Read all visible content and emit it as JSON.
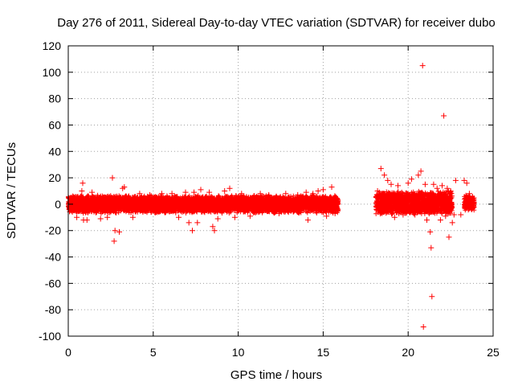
{
  "chart_data": {
    "type": "scatter",
    "title": "Day 276 of 2011, Sidereal Day-to-day VTEC variation (SDTVAR) for receiver dubo",
    "xlabel": "GPS time / hours",
    "ylabel": "SDTVAR / TECUs",
    "xlim": [
      0,
      25
    ],
    "ylim": [
      -100,
      120
    ],
    "xticks": [
      0,
      5,
      10,
      15,
      20,
      25
    ],
    "yticks": [
      -100,
      -80,
      -60,
      -40,
      -20,
      0,
      20,
      40,
      60,
      80,
      100,
      120
    ],
    "grid": true,
    "marker": "+",
    "color": "#ff0000",
    "segments": [
      {
        "x_start": 0.0,
        "x_end": 15.9,
        "y_min": -5,
        "y_max": 5
      },
      {
        "x_start": 18.1,
        "x_end": 22.6,
        "y_min": -6,
        "y_max": 8
      },
      {
        "x_start": 23.3,
        "x_end": 23.9,
        "y_min": -3,
        "y_max": 5
      }
    ],
    "highlighted_points": [
      {
        "x": 0.5,
        "y": -10
      },
      {
        "x": 0.8,
        "y": 10
      },
      {
        "x": 0.9,
        "y": -12
      },
      {
        "x": 0.85,
        "y": 16
      },
      {
        "x": 1.1,
        "y": -12
      },
      {
        "x": 1.4,
        "y": 9
      },
      {
        "x": 1.9,
        "y": -11
      },
      {
        "x": 2.3,
        "y": -10
      },
      {
        "x": 2.6,
        "y": 20
      },
      {
        "x": 2.7,
        "y": -28
      },
      {
        "x": 2.75,
        "y": -20
      },
      {
        "x": 3.0,
        "y": -21
      },
      {
        "x": 3.2,
        "y": 12
      },
      {
        "x": 3.3,
        "y": 13
      },
      {
        "x": 3.8,
        "y": -10
      },
      {
        "x": 4.2,
        "y": 8
      },
      {
        "x": 4.8,
        "y": 7
      },
      {
        "x": 5.5,
        "y": 8
      },
      {
        "x": 6.1,
        "y": 8
      },
      {
        "x": 6.5,
        "y": -10
      },
      {
        "x": 6.9,
        "y": 9
      },
      {
        "x": 7.1,
        "y": -14
      },
      {
        "x": 7.3,
        "y": -20
      },
      {
        "x": 7.4,
        "y": 9
      },
      {
        "x": 7.6,
        "y": -14
      },
      {
        "x": 7.8,
        "y": 11
      },
      {
        "x": 8.3,
        "y": 9
      },
      {
        "x": 8.5,
        "y": -17
      },
      {
        "x": 8.6,
        "y": -20
      },
      {
        "x": 8.8,
        "y": -11
      },
      {
        "x": 9.2,
        "y": 10
      },
      {
        "x": 9.5,
        "y": 12
      },
      {
        "x": 9.8,
        "y": -10
      },
      {
        "x": 10.2,
        "y": 8
      },
      {
        "x": 10.7,
        "y": -9
      },
      {
        "x": 11.3,
        "y": 8
      },
      {
        "x": 11.8,
        "y": 7
      },
      {
        "x": 12.4,
        "y": -7
      },
      {
        "x": 12.8,
        "y": 8
      },
      {
        "x": 13.5,
        "y": 7
      },
      {
        "x": 14.0,
        "y": 9
      },
      {
        "x": 14.1,
        "y": -12
      },
      {
        "x": 14.4,
        "y": 8
      },
      {
        "x": 14.7,
        "y": 10
      },
      {
        "x": 15.0,
        "y": 11
      },
      {
        "x": 15.2,
        "y": -9
      },
      {
        "x": 15.5,
        "y": 13
      },
      {
        "x": 15.7,
        "y": -7
      },
      {
        "x": 18.2,
        "y": 10
      },
      {
        "x": 18.4,
        "y": 27
      },
      {
        "x": 18.6,
        "y": 22
      },
      {
        "x": 18.8,
        "y": 18
      },
      {
        "x": 19.0,
        "y": 15
      },
      {
        "x": 19.2,
        "y": -10
      },
      {
        "x": 19.4,
        "y": 14
      },
      {
        "x": 19.7,
        "y": -8
      },
      {
        "x": 20.0,
        "y": 16
      },
      {
        "x": 20.2,
        "y": 19
      },
      {
        "x": 20.4,
        "y": -8
      },
      {
        "x": 20.6,
        "y": 22
      },
      {
        "x": 20.75,
        "y": 25
      },
      {
        "x": 20.8,
        "y": -5
      },
      {
        "x": 20.85,
        "y": 105
      },
      {
        "x": 20.9,
        "y": -93
      },
      {
        "x": 21.0,
        "y": 15
      },
      {
        "x": 21.1,
        "y": -12
      },
      {
        "x": 21.3,
        "y": -21
      },
      {
        "x": 21.35,
        "y": -33
      },
      {
        "x": 21.4,
        "y": -70
      },
      {
        "x": 21.5,
        "y": 15
      },
      {
        "x": 21.7,
        "y": 12
      },
      {
        "x": 21.9,
        "y": -12
      },
      {
        "x": 22.0,
        "y": 14
      },
      {
        "x": 22.1,
        "y": 67
      },
      {
        "x": 22.2,
        "y": -9
      },
      {
        "x": 22.3,
        "y": 12
      },
      {
        "x": 22.4,
        "y": -25
      },
      {
        "x": 22.5,
        "y": 10
      },
      {
        "x": 22.6,
        "y": -14
      },
      {
        "x": 22.7,
        "y": -8
      },
      {
        "x": 22.8,
        "y": 18
      },
      {
        "x": 23.1,
        "y": -8
      },
      {
        "x": 23.3,
        "y": 18
      },
      {
        "x": 23.45,
        "y": 16
      },
      {
        "x": 23.6,
        "y": 8
      },
      {
        "x": 23.8,
        "y": -3
      }
    ]
  }
}
